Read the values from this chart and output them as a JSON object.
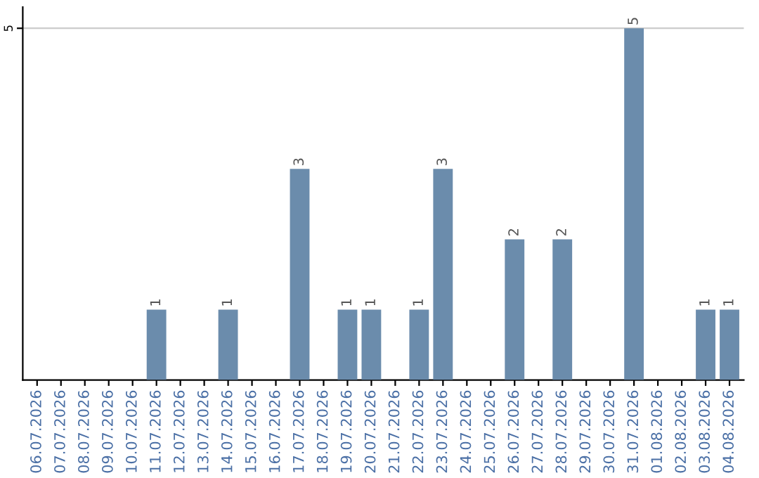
{
  "chart_data": {
    "type": "bar",
    "categories": [
      "06.07.2026",
      "07.07.2026",
      "08.07.2026",
      "09.07.2026",
      "10.07.2026",
      "11.07.2026",
      "12.07.2026",
      "13.07.2026",
      "14.07.2026",
      "15.07.2026",
      "16.07.2026",
      "17.07.2026",
      "18.07.2026",
      "19.07.2026",
      "20.07.2026",
      "21.07.2026",
      "22.07.2026",
      "23.07.2026",
      "24.07.2026",
      "25.07.2026",
      "26.07.2026",
      "27.07.2026",
      "28.07.2026",
      "29.07.2026",
      "30.07.2026",
      "31.07.2026",
      "01.08.2026",
      "02.08.2026",
      "03.08.2026",
      "04.08.2026"
    ],
    "values": [
      0,
      0,
      0,
      0,
      0,
      1,
      0,
      0,
      1,
      0,
      0,
      3,
      0,
      1,
      1,
      0,
      1,
      3,
      0,
      0,
      2,
      0,
      2,
      0,
      0,
      5,
      0,
      0,
      1,
      1
    ],
    "value_labels": [
      null,
      null,
      null,
      null,
      null,
      "1",
      null,
      null,
      "1",
      null,
      null,
      "3",
      null,
      "1",
      "1",
      null,
      "1",
      "3",
      null,
      null,
      "2",
      null,
      "2",
      null,
      null,
      "5",
      null,
      null,
      "1",
      "1"
    ],
    "color": "#6b8cac",
    "ylim": [
      0,
      5.3
    ],
    "yticks": [
      5
    ],
    "grid": "y"
  }
}
